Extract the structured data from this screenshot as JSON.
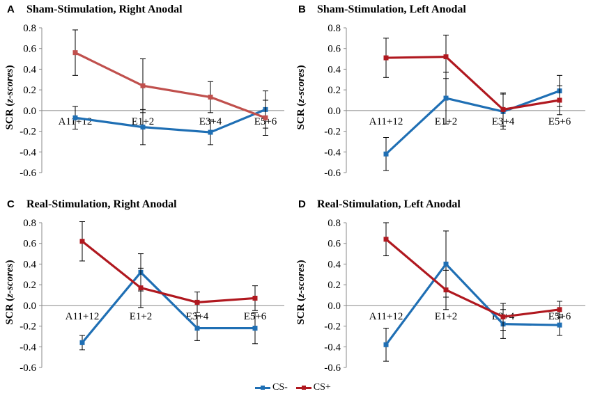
{
  "colors": {
    "cs_minus": "#1f6fb4",
    "cs_plus_faded": "#c0504d",
    "cs_plus": "#b0181f"
  },
  "legend": {
    "cs_minus": "CS-",
    "cs_plus": "CS+"
  },
  "chart_data": [
    {
      "type": "line",
      "panel": "A",
      "title": "Sham-Stimulation,  Right Anodal",
      "ylabel_prefix": "SCR (",
      "ylabel_italic": "z-scores",
      "ylabel_suffix": ")",
      "ylim": [
        -0.6,
        0.8
      ],
      "yticks": [
        "0.8",
        "0.6",
        "0.4",
        "0.2",
        "0.0",
        "-0.2",
        "-0.4",
        "-0.6"
      ],
      "categories": [
        "A11+12",
        "E1+2",
        "E3+4",
        "E5+6"
      ],
      "series": [
        {
          "name": "CS-",
          "color_key": "cs_minus",
          "values": [
            -0.07,
            -0.16,
            -0.21,
            0.01
          ],
          "errors": [
            0.11,
            0.17,
            0.12,
            0.18
          ]
        },
        {
          "name": "CS+",
          "color_key": "cs_plus_faded",
          "values": [
            0.56,
            0.24,
            0.13,
            -0.07
          ],
          "errors": [
            0.22,
            0.26,
            0.15,
            0.17
          ]
        }
      ]
    },
    {
      "type": "line",
      "panel": "B",
      "title": "Sham-Stimulation,  Left Anodal",
      "ylabel_prefix": "SCR (",
      "ylabel_italic": "z-scores",
      "ylabel_suffix": ")",
      "ylim": [
        -0.6,
        0.8
      ],
      "yticks": [
        "0.8",
        "0.6",
        "0.4",
        "0.2",
        "0.0",
        "-0.2",
        "-0.4",
        "-0.6"
      ],
      "categories": [
        "A11+12",
        "E1+2",
        "E3+4",
        "E5+6"
      ],
      "series": [
        {
          "name": "CS-",
          "color_key": "cs_minus",
          "values": [
            -0.42,
            0.12,
            -0.01,
            0.19
          ],
          "errors": [
            0.16,
            0.25,
            0.17,
            0.15
          ]
        },
        {
          "name": "CS+",
          "color_key": "cs_plus",
          "values": [
            0.51,
            0.52,
            0.01,
            0.1
          ],
          "errors": [
            0.19,
            0.21,
            0.16,
            0.14
          ]
        }
      ]
    },
    {
      "type": "line",
      "panel": "C",
      "title": "Real-Stimulation,  Right Anodal",
      "ylabel_prefix": "SCR (",
      "ylabel_italic": "z-scores",
      "ylabel_suffix": ")",
      "ylim": [
        -0.6,
        0.8
      ],
      "yticks": [
        "0.8",
        "0.6",
        "0.4",
        "0.2",
        "0.0",
        "-0.2",
        "-0.4",
        "-0.6"
      ],
      "categories": [
        "A11+12",
        "E1+2",
        "E3+4",
        "E5+6"
      ],
      "series": [
        {
          "name": "CS-",
          "color_key": "cs_minus",
          "values": [
            -0.36,
            0.32,
            -0.22,
            -0.22
          ],
          "errors": [
            0.07,
            0.18,
            0.12,
            0.15
          ]
        },
        {
          "name": "CS+",
          "color_key": "cs_plus",
          "values": [
            0.62,
            0.17,
            0.03,
            0.07
          ],
          "errors": [
            0.19,
            0.19,
            0.1,
            0.12
          ]
        }
      ]
    },
    {
      "type": "line",
      "panel": "D",
      "title": "Real-Stimulation,  Left Anodal",
      "ylabel_prefix": "SCR (",
      "ylabel_italic": "z-scores",
      "ylabel_suffix": ")",
      "ylim": [
        -0.6,
        0.8
      ],
      "yticks": [
        "0.8",
        "0.6",
        "0.4",
        "0.2",
        "0.0",
        "-0.2",
        "-0.4",
        "-0.6"
      ],
      "categories": [
        "A11+12",
        "E1+2",
        "E3+4",
        "E5+6"
      ],
      "series": [
        {
          "name": "CS-",
          "color_key": "cs_minus",
          "values": [
            -0.38,
            0.4,
            -0.18,
            -0.19
          ],
          "errors": [
            0.16,
            0.32,
            0.14,
            0.1
          ]
        },
        {
          "name": "CS+",
          "color_key": "cs_plus",
          "values": [
            0.64,
            0.15,
            -0.11,
            -0.04
          ],
          "errors": [
            0.16,
            0.19,
            0.13,
            0.08
          ]
        }
      ]
    }
  ]
}
